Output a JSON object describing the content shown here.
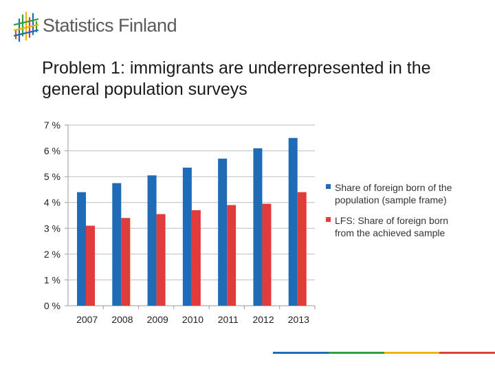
{
  "brand": {
    "name": "Statistics Finland"
  },
  "slide": {
    "title": "Problem 1: immigrants are underrepresented in the general population surveys"
  },
  "colors": {
    "series1": "#1f6bb5",
    "series2": "#e03c3c",
    "footer": [
      "#1f6bb5",
      "#2ea043",
      "#f0b400",
      "#e03c3c"
    ]
  },
  "chart_data": {
    "type": "bar",
    "title": "",
    "xlabel": "",
    "ylabel": "",
    "categories": [
      "2007",
      "2008",
      "2009",
      "2010",
      "2011",
      "2012",
      "2013"
    ],
    "ylim": [
      0,
      7
    ],
    "yticks": [
      "0 %",
      "1 %",
      "2 %",
      "3 %",
      "4 %",
      "5 %",
      "6 %",
      "7 %"
    ],
    "grid": true,
    "legend_position": "right",
    "series": [
      {
        "name": "Share of foreign born of the population (sample frame)",
        "values": [
          4.4,
          4.75,
          5.05,
          5.35,
          5.7,
          6.1,
          6.5
        ]
      },
      {
        "name": "LFS: Share of foreign born from the achieved sample",
        "values": [
          3.1,
          3.4,
          3.55,
          3.7,
          3.9,
          3.95,
          4.4
        ]
      }
    ]
  }
}
